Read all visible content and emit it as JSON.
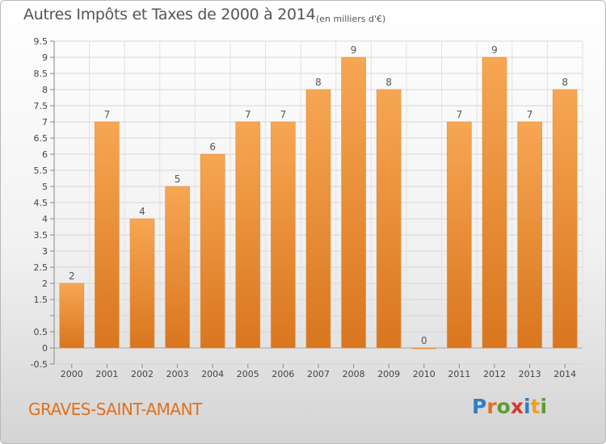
{
  "header": {
    "title": "Autres Impôts et Taxes de 2000 à 2014",
    "subtitle": "(en milliers d'€)"
  },
  "footer": {
    "commune": "GRAVES-SAINT-AMANT",
    "logo_text": "Proxiti"
  },
  "colors": {
    "bar_light": "#f7a653",
    "bar_dark": "#d9761e",
    "title_text": "#555555",
    "commune_text": "#e07020"
  },
  "chart_data": {
    "type": "bar",
    "title": "Autres Impôts et Taxes de 2000 à 2014",
    "subtitle": "(en milliers d'€)",
    "categories": [
      "2000",
      "2001",
      "2002",
      "2003",
      "2004",
      "2005",
      "2006",
      "2007",
      "2008",
      "2009",
      "2010",
      "2011",
      "2012",
      "2013",
      "2014"
    ],
    "values": [
      2,
      7,
      4,
      5,
      6,
      7,
      7,
      8,
      9,
      8,
      0,
      7,
      9,
      7,
      8
    ],
    "data_labels": [
      "2",
      "7",
      "4",
      "5",
      "6",
      "7",
      "7",
      "8",
      "9",
      "8",
      "0",
      "7",
      "9",
      "7",
      "8"
    ],
    "ylim": [
      -0.5,
      9.5
    ],
    "y_ticks": [
      -0.5,
      0,
      0.5,
      1,
      1.5,
      2,
      2.5,
      3,
      3.5,
      4,
      4.5,
      5,
      5.5,
      6,
      6.5,
      7,
      7.5,
      8,
      8.5,
      9,
      9.5
    ],
    "y_tick_labels": [
      "-0.5",
      "0",
      "0.5",
      "",
      "1.5",
      "2",
      "2.5",
      "3",
      "3.5",
      "4",
      "4.5",
      "5",
      "5.5",
      "6",
      "6.5",
      "7",
      "7.5",
      "8",
      "8.5",
      "9",
      "9.5"
    ],
    "grid": true,
    "legend": "none"
  }
}
